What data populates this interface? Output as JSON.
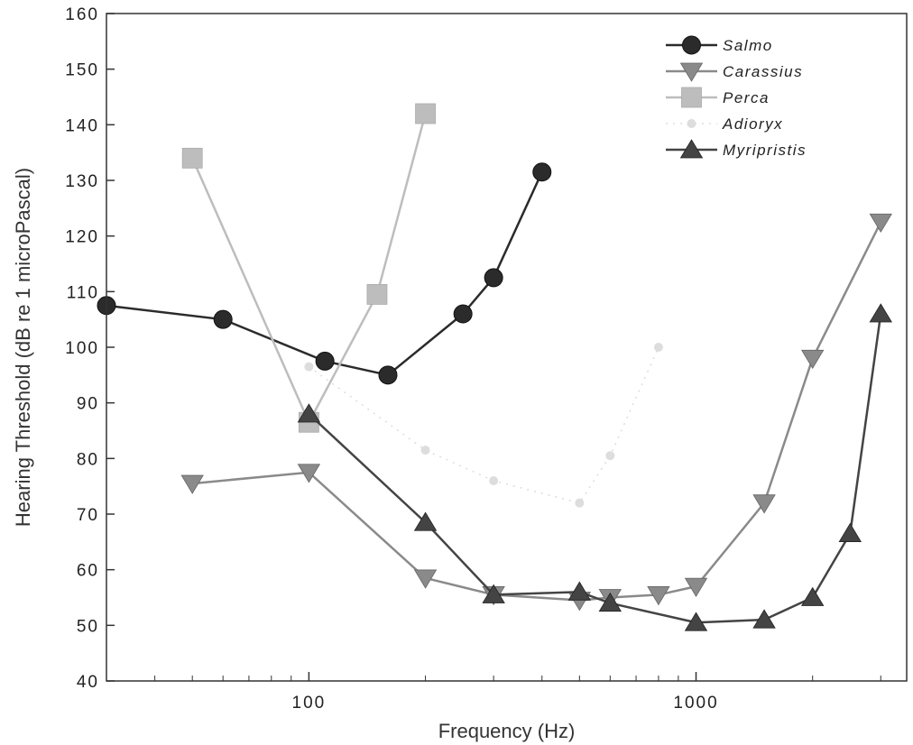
{
  "chart_data": {
    "type": "line",
    "xlabel": "Frequency (Hz)",
    "ylabel": "Hearing Threshold (dB re 1 microPascal)",
    "xscale": "log",
    "xlim": [
      30,
      3500
    ],
    "ylim": [
      40,
      160
    ],
    "x_ticks": [
      100,
      1000
    ],
    "x_tick_labels": [
      "100",
      "1000"
    ],
    "y_ticks": [
      40,
      50,
      60,
      70,
      80,
      90,
      100,
      110,
      120,
      130,
      140,
      150,
      160
    ],
    "y_tick_labels": [
      "40",
      "50",
      "60",
      "70",
      "80",
      "90",
      "100",
      "110",
      "120",
      "130",
      "140",
      "150",
      "160"
    ],
    "grid": false,
    "legend_position": "top-right",
    "series": [
      {
        "name": "Salmo",
        "color": "#2b2b2b",
        "marker": "circle",
        "points": [
          [
            30,
            107.5
          ],
          [
            60,
            105
          ],
          [
            110,
            97.5
          ],
          [
            160,
            95
          ],
          [
            250,
            106
          ],
          [
            300,
            112.5
          ],
          [
            400,
            131.5
          ]
        ]
      },
      {
        "name": "Carassius",
        "color": "#8a8a8a",
        "marker": "triangle-down",
        "points": [
          [
            50,
            75.5
          ],
          [
            100,
            77.5
          ],
          [
            200,
            58.5
          ],
          [
            300,
            55.5
          ],
          [
            500,
            54.5
          ],
          [
            600,
            55
          ],
          [
            800,
            55.5
          ],
          [
            1000,
            57
          ],
          [
            1500,
            72
          ],
          [
            2000,
            98
          ],
          [
            3000,
            122.5
          ]
        ]
      },
      {
        "name": "Perca",
        "color": "#bdbdbd",
        "marker": "square",
        "points": [
          [
            50,
            134
          ],
          [
            100,
            86.5
          ],
          [
            150,
            109.5
          ],
          [
            200,
            142
          ]
        ]
      },
      {
        "name": "Adioryx",
        "color": "#dddddd",
        "marker": "faint",
        "points": [
          [
            100,
            96.5
          ],
          [
            200,
            81.5
          ],
          [
            300,
            76
          ],
          [
            500,
            72
          ],
          [
            600,
            80.5
          ],
          [
            800,
            100
          ]
        ]
      },
      {
        "name": "Myripristis",
        "color": "#444444",
        "marker": "triangle-up",
        "points": [
          [
            100,
            88
          ],
          [
            200,
            68.5
          ],
          [
            300,
            55.5
          ],
          [
            500,
            56
          ],
          [
            600,
            54
          ],
          [
            1000,
            50.5
          ],
          [
            1500,
            51
          ],
          [
            2000,
            55
          ],
          [
            2500,
            66.5
          ],
          [
            3000,
            106
          ]
        ]
      }
    ]
  }
}
